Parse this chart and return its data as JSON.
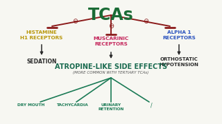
{
  "bg_color": "#f7f7f2",
  "title": "TCAs",
  "title_color": "#1a6b35",
  "arrow_color": "#8b1a1a",
  "dark_color": "#2a2a2a",
  "teal_color": "#1a6b50",
  "gold_color": "#b8970a",
  "blue_color": "#2a52be",
  "pink_color": "#c4245a",
  "leaf_color": "#1a7a55",
  "hist_text": "HISTAMINE\nH1 RECEPTORS",
  "alpha_text": "ALPHA 1\nRECEPTORS",
  "musc_text": "MUSCARINIC\nRECEPTORS",
  "sed_text": "SEDATION",
  "ortho_text": "ORTHOSTATIC\nHYPOTENSION",
  "atrop_text": "ATROPINE-LIKE SIDE EFFECTS",
  "sub_text": "(MORE COMMON WITH TERTIARY TCAs)",
  "leaf1": "DRY MOUTH",
  "leaf2": "TACHYCARDIA",
  "leaf3": "URINARY\nRETENTION",
  "leaf4": "/"
}
